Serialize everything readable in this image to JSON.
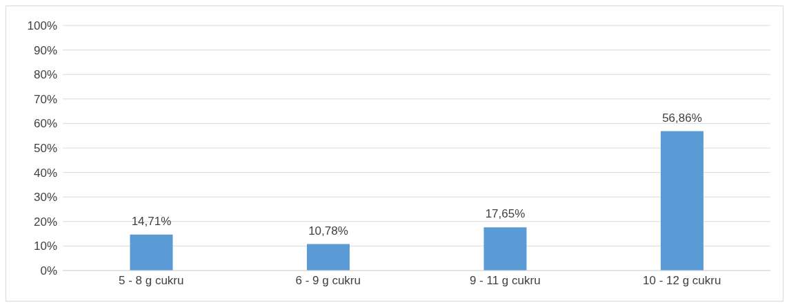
{
  "chart_data": {
    "type": "bar",
    "categories": [
      "5 - 8 g cukru",
      "6 - 9 g cukru",
      "9 - 11 g cukru",
      "10 - 12 g cukru"
    ],
    "values": [
      14.71,
      10.78,
      17.65,
      56.86
    ],
    "color": "#5b9bd5",
    "value_labels": [
      "14,71%",
      "10,78%",
      "17,65%",
      "56,86%"
    ],
    "ylim": [
      0,
      100
    ],
    "yticks": [
      {
        "value": 0,
        "label": "0%"
      },
      {
        "value": 10,
        "label": "10%"
      },
      {
        "value": 20,
        "label": "20%"
      },
      {
        "value": 30,
        "label": "30%"
      },
      {
        "value": 40,
        "label": "40%"
      },
      {
        "value": 50,
        "label": "50%"
      },
      {
        "value": 60,
        "label": "60%"
      },
      {
        "value": 70,
        "label": "70%"
      },
      {
        "value": 80,
        "label": "80%"
      },
      {
        "value": 90,
        "label": "90%"
      },
      {
        "value": 100,
        "label": "100%"
      }
    ],
    "grid": "y",
    "legend": false
  }
}
